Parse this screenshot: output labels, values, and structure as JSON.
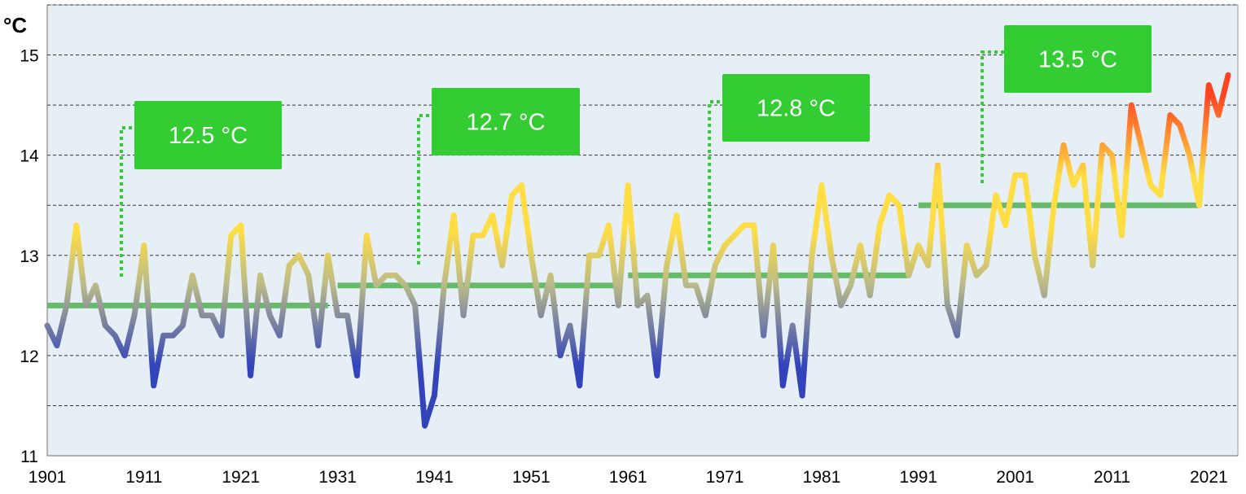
{
  "chart_data": {
    "type": "line",
    "unit_label": "°C",
    "title": "",
    "xlabel": "",
    "ylabel": "",
    "xlim": [
      1901,
      2024
    ],
    "ylim": [
      11,
      15.5
    ],
    "y_ticks": [
      11,
      12,
      13,
      14,
      15
    ],
    "x_ticks": [
      1901,
      1911,
      1921,
      1931,
      1941,
      1951,
      1961,
      1971,
      1981,
      1991,
      2001,
      2011,
      2021
    ],
    "grid": "horizontal dashed every 0.5",
    "colors": {
      "plot_background": "#e6eef6",
      "average_line": "#66bb6a",
      "label_box": "#33cc33",
      "connector": "#33cc33",
      "cold": "#3344bb",
      "neutral": "#bbbb88",
      "warm": "#ffdd44",
      "hot": "#ff4422"
    },
    "series": [
      {
        "values": [
          [
            1901,
            12.3
          ],
          [
            1902,
            12.1
          ],
          [
            1903,
            12.5
          ],
          [
            1904,
            13.3
          ],
          [
            1905,
            12.5
          ],
          [
            1906,
            12.7
          ],
          [
            1907,
            12.3
          ],
          [
            1908,
            12.2
          ],
          [
            1909,
            12.0
          ],
          [
            1910,
            12.4
          ],
          [
            1911,
            13.1
          ],
          [
            1912,
            11.7
          ],
          [
            1913,
            12.2
          ],
          [
            1914,
            12.2
          ],
          [
            1915,
            12.3
          ],
          [
            1916,
            12.8
          ],
          [
            1917,
            12.4
          ],
          [
            1918,
            12.4
          ],
          [
            1919,
            12.2
          ],
          [
            1920,
            13.2
          ],
          [
            1921,
            13.3
          ],
          [
            1922,
            11.8
          ],
          [
            1923,
            12.8
          ],
          [
            1924,
            12.4
          ],
          [
            1925,
            12.2
          ],
          [
            1926,
            12.9
          ],
          [
            1927,
            13.0
          ],
          [
            1928,
            12.8
          ],
          [
            1929,
            12.1
          ],
          [
            1930,
            13.0
          ],
          [
            1931,
            12.4
          ],
          [
            1932,
            12.4
          ],
          [
            1933,
            11.8
          ],
          [
            1934,
            13.2
          ],
          [
            1935,
            12.7
          ],
          [
            1936,
            12.8
          ],
          [
            1937,
            12.8
          ],
          [
            1938,
            12.7
          ],
          [
            1939,
            12.5
          ],
          [
            1940,
            11.3
          ],
          [
            1941,
            11.6
          ],
          [
            1942,
            12.7
          ],
          [
            1943,
            13.4
          ],
          [
            1944,
            12.4
          ],
          [
            1945,
            13.2
          ],
          [
            1946,
            13.2
          ],
          [
            1947,
            13.4
          ],
          [
            1948,
            12.9
          ],
          [
            1949,
            13.6
          ],
          [
            1950,
            13.7
          ],
          [
            1951,
            13.0
          ],
          [
            1952,
            12.4
          ],
          [
            1953,
            12.8
          ],
          [
            1954,
            12.0
          ],
          [
            1955,
            12.3
          ],
          [
            1956,
            11.7
          ],
          [
            1957,
            13.0
          ],
          [
            1958,
            13.0
          ],
          [
            1959,
            13.3
          ],
          [
            1960,
            12.5
          ],
          [
            1961,
            13.7
          ],
          [
            1962,
            12.5
          ],
          [
            1963,
            12.6
          ],
          [
            1964,
            11.8
          ],
          [
            1965,
            12.9
          ],
          [
            1966,
            13.4
          ],
          [
            1967,
            12.7
          ],
          [
            1968,
            12.7
          ],
          [
            1969,
            12.4
          ],
          [
            1970,
            12.9
          ],
          [
            1971,
            13.1
          ],
          [
            1972,
            13.2
          ],
          [
            1973,
            13.3
          ],
          [
            1974,
            13.3
          ],
          [
            1975,
            12.2
          ],
          [
            1976,
            13.1
          ],
          [
            1977,
            11.7
          ],
          [
            1978,
            12.3
          ],
          [
            1979,
            11.6
          ],
          [
            1980,
            13.0
          ],
          [
            1981,
            13.7
          ],
          [
            1982,
            13.0
          ],
          [
            1983,
            12.5
          ],
          [
            1984,
            12.7
          ],
          [
            1985,
            13.1
          ],
          [
            1986,
            12.6
          ],
          [
            1987,
            13.3
          ],
          [
            1988,
            13.6
          ],
          [
            1989,
            13.5
          ],
          [
            1990,
            12.8
          ],
          [
            1991,
            13.1
          ],
          [
            1992,
            12.9
          ],
          [
            1993,
            13.9
          ],
          [
            1994,
            12.5
          ],
          [
            1995,
            12.2
          ],
          [
            1996,
            13.1
          ],
          [
            1997,
            12.8
          ],
          [
            1998,
            12.9
          ],
          [
            1999,
            13.6
          ],
          [
            2000,
            13.3
          ],
          [
            2001,
            13.8
          ],
          [
            2002,
            13.8
          ],
          [
            2003,
            13.0
          ],
          [
            2004,
            12.6
          ],
          [
            2005,
            13.5
          ],
          [
            2006,
            14.1
          ],
          [
            2007,
            13.7
          ],
          [
            2008,
            13.9
          ],
          [
            2009,
            12.9
          ],
          [
            2010,
            14.1
          ],
          [
            2011,
            14.0
          ],
          [
            2012,
            13.2
          ],
          [
            2013,
            14.5
          ],
          [
            2014,
            14.1
          ],
          [
            2015,
            13.7
          ],
          [
            2016,
            13.6
          ],
          [
            2017,
            14.4
          ],
          [
            2018,
            14.3
          ],
          [
            2019,
            14.0
          ],
          [
            2020,
            13.5
          ],
          [
            2021,
            14.7
          ],
          [
            2022,
            14.4
          ],
          [
            2023,
            14.8
          ]
        ]
      }
    ],
    "period_averages": [
      {
        "start": 1901,
        "end": 1930,
        "value": 12.5,
        "label": "12.5 °C"
      },
      {
        "start": 1931,
        "end": 1960,
        "value": 12.7,
        "label": "12.7 °C"
      },
      {
        "start": 1961,
        "end": 1990,
        "value": 12.8,
        "label": "12.8 °C"
      },
      {
        "start": 1991,
        "end": 2020,
        "value": 13.5,
        "label": "13.5 °C"
      }
    ]
  }
}
